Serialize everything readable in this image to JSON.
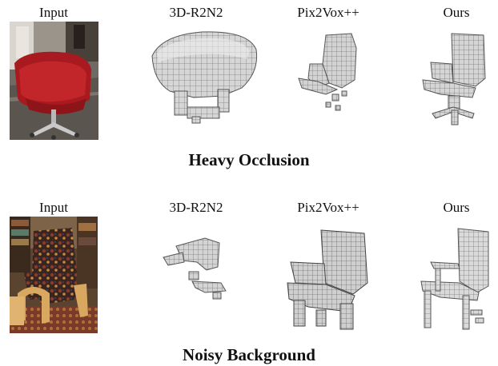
{
  "columns": [
    "Input",
    "3D-R2N2",
    "Pix2Vox++",
    "Ours"
  ],
  "rows": [
    {
      "caption": "Heavy Occlusion"
    },
    {
      "caption": "Noisy Background"
    }
  ]
}
